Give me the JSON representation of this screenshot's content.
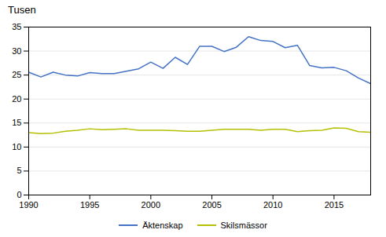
{
  "chart_data": {
    "type": "line",
    "title": "Tusen",
    "x": [
      1990,
      1991,
      1992,
      1993,
      1994,
      1995,
      1996,
      1997,
      1998,
      1999,
      2000,
      2001,
      2002,
      2003,
      2004,
      2005,
      2006,
      2007,
      2008,
      2009,
      2010,
      2011,
      2012,
      2013,
      2014,
      2015,
      2016,
      2017,
      2018
    ],
    "series": [
      {
        "name": "Äktenskap",
        "color": "#4472c4",
        "values": [
          25.6,
          24.6,
          25.6,
          25.0,
          24.8,
          25.5,
          25.3,
          25.3,
          25.8,
          26.3,
          27.7,
          26.4,
          28.7,
          27.2,
          31.0,
          31.0,
          29.9,
          30.8,
          33.0,
          32.2,
          32.0,
          30.7,
          31.2,
          27.0,
          26.5,
          26.6,
          25.9,
          24.4,
          23.2
        ]
      },
      {
        "name": "Skilsmässor",
        "color": "#b5c000",
        "values": [
          13.0,
          12.8,
          12.9,
          13.3,
          13.5,
          13.8,
          13.6,
          13.7,
          13.8,
          13.5,
          13.5,
          13.5,
          13.4,
          13.3,
          13.3,
          13.5,
          13.7,
          13.7,
          13.7,
          13.5,
          13.7,
          13.7,
          13.2,
          13.4,
          13.5,
          14.0,
          13.9,
          13.2,
          13.1
        ]
      }
    ],
    "xlim": [
      1990,
      2018
    ],
    "xticks": [
      1990,
      1995,
      2000,
      2005,
      2010,
      2015
    ],
    "ylim": [
      0,
      35
    ],
    "yticks": [
      0,
      5,
      10,
      15,
      20,
      25,
      30,
      35
    ],
    "grid": "y",
    "legend": "bottom"
  }
}
